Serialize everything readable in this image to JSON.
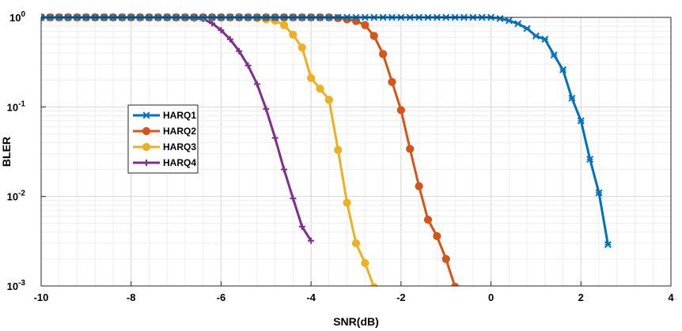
{
  "chart_data": {
    "type": "line",
    "title": "",
    "xlabel": "SNR(dB)",
    "ylabel": "BLER",
    "xlim": [
      -10,
      4
    ],
    "ylim": [
      0.001,
      1
    ],
    "yscale": "log",
    "grid": true,
    "legend_position": "left",
    "x_ticks": [
      -10,
      -8,
      -6,
      -4,
      -2,
      0,
      2,
      4
    ],
    "x_tick_labels": [
      "-10",
      "-8",
      "-6",
      "-4",
      "-2",
      "0",
      "2",
      "4"
    ],
    "y_ticks": [
      0.001,
      0.01,
      0.1,
      1
    ],
    "y_tick_base": "10",
    "y_tick_exponents": [
      "-3",
      "-2",
      "-1",
      "0"
    ],
    "series": [
      {
        "name": "HARQ1",
        "color": "#0072BD",
        "marker": "x-star",
        "points": [
          [
            -10,
            1.0
          ],
          [
            -9.8,
            1.0
          ],
          [
            -9.6,
            1.0
          ],
          [
            -9.4,
            1.0
          ],
          [
            -9.2,
            1.0
          ],
          [
            -9.0,
            1.0
          ],
          [
            -8.8,
            1.0
          ],
          [
            -8.6,
            1.0
          ],
          [
            -8.4,
            1.0
          ],
          [
            -8.2,
            1.0
          ],
          [
            -8.0,
            1.0
          ],
          [
            -7.8,
            1.0
          ],
          [
            -7.6,
            1.0
          ],
          [
            -7.4,
            1.0
          ],
          [
            -7.2,
            1.0
          ],
          [
            -7.0,
            1.0
          ],
          [
            -6.8,
            1.0
          ],
          [
            -6.6,
            1.0
          ],
          [
            -6.4,
            1.0
          ],
          [
            -6.2,
            1.0
          ],
          [
            -6.0,
            1.0
          ],
          [
            -5.8,
            1.0
          ],
          [
            -5.6,
            1.0
          ],
          [
            -5.4,
            1.0
          ],
          [
            -5.2,
            1.0
          ],
          [
            -5.0,
            1.0
          ],
          [
            -4.8,
            1.0
          ],
          [
            -4.6,
            1.0
          ],
          [
            -4.4,
            1.0
          ],
          [
            -4.2,
            1.0
          ],
          [
            -4.0,
            1.0
          ],
          [
            -3.8,
            1.0
          ],
          [
            -3.6,
            1.0
          ],
          [
            -3.4,
            1.0
          ],
          [
            -3.2,
            1.0
          ],
          [
            -3.0,
            1.0
          ],
          [
            -2.8,
            1.0
          ],
          [
            -2.6,
            1.0
          ],
          [
            -2.4,
            1.0
          ],
          [
            -2.2,
            1.0
          ],
          [
            -2.0,
            1.0
          ],
          [
            -1.8,
            1.0
          ],
          [
            -1.6,
            1.0
          ],
          [
            -1.4,
            1.0
          ],
          [
            -1.2,
            1.0
          ],
          [
            -1.0,
            1.0
          ],
          [
            -0.8,
            1.0
          ],
          [
            -0.6,
            1.0
          ],
          [
            -0.4,
            1.0
          ],
          [
            -0.2,
            1.0
          ],
          [
            0.0,
            1.0
          ],
          [
            0.2,
            0.97
          ],
          [
            0.4,
            0.92
          ],
          [
            0.6,
            0.85
          ],
          [
            0.8,
            0.75
          ],
          [
            1.0,
            0.62
          ],
          [
            1.2,
            0.57
          ],
          [
            1.4,
            0.38
          ],
          [
            1.6,
            0.26
          ],
          [
            1.8,
            0.125
          ],
          [
            2.0,
            0.07
          ],
          [
            2.2,
            0.026
          ],
          [
            2.4,
            0.011
          ],
          [
            2.6,
            0.0029
          ]
        ]
      },
      {
        "name": "HARQ2",
        "color": "#D95319",
        "marker": "circle",
        "points": [
          [
            -10,
            1.0
          ],
          [
            -9.8,
            1.0
          ],
          [
            -9.6,
            1.0
          ],
          [
            -9.4,
            1.0
          ],
          [
            -9.2,
            1.0
          ],
          [
            -9.0,
            1.0
          ],
          [
            -8.8,
            1.0
          ],
          [
            -8.6,
            1.0
          ],
          [
            -8.4,
            1.0
          ],
          [
            -8.2,
            1.0
          ],
          [
            -8.0,
            1.0
          ],
          [
            -7.8,
            1.0
          ],
          [
            -7.6,
            1.0
          ],
          [
            -7.4,
            1.0
          ],
          [
            -7.2,
            1.0
          ],
          [
            -7.0,
            1.0
          ],
          [
            -6.8,
            1.0
          ],
          [
            -6.6,
            1.0
          ],
          [
            -6.4,
            1.0
          ],
          [
            -6.2,
            1.0
          ],
          [
            -6.0,
            1.0
          ],
          [
            -5.8,
            1.0
          ],
          [
            -5.6,
            1.0
          ],
          [
            -5.4,
            1.0
          ],
          [
            -5.2,
            1.0
          ],
          [
            -5.0,
            1.0
          ],
          [
            -4.8,
            1.0
          ],
          [
            -4.6,
            1.0
          ],
          [
            -4.4,
            1.0
          ],
          [
            -4.2,
            1.0
          ],
          [
            -4.0,
            1.0
          ],
          [
            -3.8,
            1.0
          ],
          [
            -3.6,
            1.0
          ],
          [
            -3.4,
            0.98
          ],
          [
            -3.2,
            0.95
          ],
          [
            -3.0,
            0.91
          ],
          [
            -2.8,
            0.82
          ],
          [
            -2.6,
            0.62
          ],
          [
            -2.4,
            0.39
          ],
          [
            -2.2,
            0.19
          ],
          [
            -2.0,
            0.092
          ],
          [
            -1.8,
            0.034
          ],
          [
            -1.6,
            0.013
          ],
          [
            -1.4,
            0.0055
          ],
          [
            -1.2,
            0.0036
          ],
          [
            -1.0,
            0.002
          ],
          [
            -0.8,
            0.00098
          ]
        ]
      },
      {
        "name": "HARQ3",
        "color": "#EDB120",
        "marker": "circle",
        "points": [
          [
            -10,
            1.0
          ],
          [
            -9.8,
            1.0
          ],
          [
            -9.6,
            1.0
          ],
          [
            -9.4,
            1.0
          ],
          [
            -9.2,
            1.0
          ],
          [
            -9.0,
            1.0
          ],
          [
            -8.8,
            1.0
          ],
          [
            -8.6,
            1.0
          ],
          [
            -8.4,
            1.0
          ],
          [
            -8.2,
            1.0
          ],
          [
            -8.0,
            1.0
          ],
          [
            -7.8,
            1.0
          ],
          [
            -7.6,
            1.0
          ],
          [
            -7.4,
            1.0
          ],
          [
            -7.2,
            1.0
          ],
          [
            -7.0,
            1.0
          ],
          [
            -6.8,
            1.0
          ],
          [
            -6.6,
            1.0
          ],
          [
            -6.4,
            1.0
          ],
          [
            -6.2,
            1.0
          ],
          [
            -6.0,
            1.0
          ],
          [
            -5.8,
            1.0
          ],
          [
            -5.6,
            1.0
          ],
          [
            -5.4,
            1.0
          ],
          [
            -5.2,
            0.98
          ],
          [
            -5.0,
            0.95
          ],
          [
            -4.8,
            0.92
          ],
          [
            -4.6,
            0.82
          ],
          [
            -4.4,
            0.64
          ],
          [
            -4.2,
            0.46
          ],
          [
            -4.0,
            0.21
          ],
          [
            -3.8,
            0.16
          ],
          [
            -3.6,
            0.12
          ],
          [
            -3.4,
            0.033
          ],
          [
            -3.2,
            0.0085
          ],
          [
            -3.0,
            0.003
          ],
          [
            -2.8,
            0.0018
          ],
          [
            -2.6,
            0.00097
          ]
        ]
      },
      {
        "name": "HARQ4",
        "color": "#7E2F8E",
        "marker": "plus",
        "points": [
          [
            -10,
            1.0
          ],
          [
            -9.8,
            1.0
          ],
          [
            -9.6,
            1.0
          ],
          [
            -9.4,
            1.0
          ],
          [
            -9.2,
            1.0
          ],
          [
            -9.0,
            1.0
          ],
          [
            -8.8,
            1.0
          ],
          [
            -8.6,
            1.0
          ],
          [
            -8.4,
            1.0
          ],
          [
            -8.2,
            1.0
          ],
          [
            -8.0,
            1.0
          ],
          [
            -7.8,
            1.0
          ],
          [
            -7.6,
            1.0
          ],
          [
            -7.4,
            1.0
          ],
          [
            -7.2,
            1.0
          ],
          [
            -7.0,
            1.0
          ],
          [
            -6.8,
            0.99
          ],
          [
            -6.6,
            0.97
          ],
          [
            -6.4,
            0.96
          ],
          [
            -6.2,
            0.86
          ],
          [
            -6.0,
            0.72
          ],
          [
            -5.8,
            0.57
          ],
          [
            -5.6,
            0.42
          ],
          [
            -5.4,
            0.29
          ],
          [
            -5.2,
            0.18
          ],
          [
            -5.0,
            0.095
          ],
          [
            -4.8,
            0.045
          ],
          [
            -4.6,
            0.02
          ],
          [
            -4.4,
            0.0095
          ],
          [
            -4.2,
            0.0046
          ],
          [
            -4.0,
            0.0032
          ]
        ]
      }
    ]
  }
}
